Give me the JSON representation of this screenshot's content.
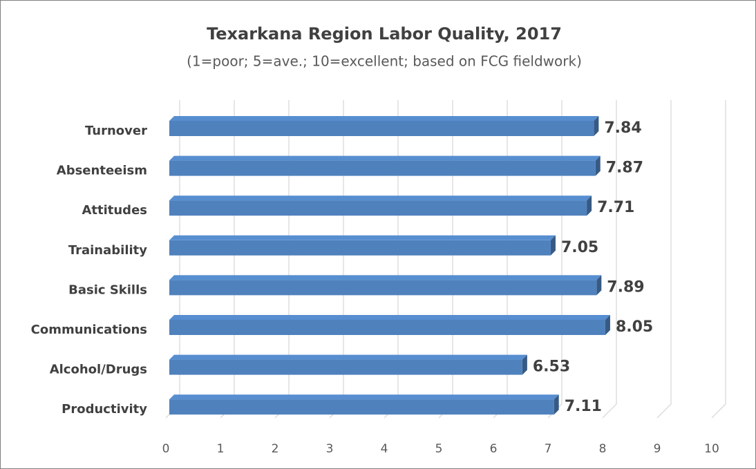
{
  "chart_data": {
    "type": "bar",
    "orientation": "horizontal",
    "title": "Texarkana Region Labor Quality, 2017",
    "subtitle": "(1=poor; 5=ave.; 10=excellent; based on FCG fieldwork)",
    "categories": [
      "Turnover",
      "Absenteeism",
      "Attitudes",
      "Trainability",
      "Basic Skills",
      "Communications",
      "Alcohol/Drugs",
      "Productivity"
    ],
    "values": [
      7.84,
      7.87,
      7.71,
      7.05,
      7.89,
      8.05,
      6.53,
      7.11
    ],
    "color": "#4f81bd",
    "xlim": [
      0,
      10
    ],
    "xticks": [
      0,
      1,
      2,
      3,
      4,
      5,
      6,
      7,
      8,
      9,
      10
    ],
    "grid": true
  }
}
